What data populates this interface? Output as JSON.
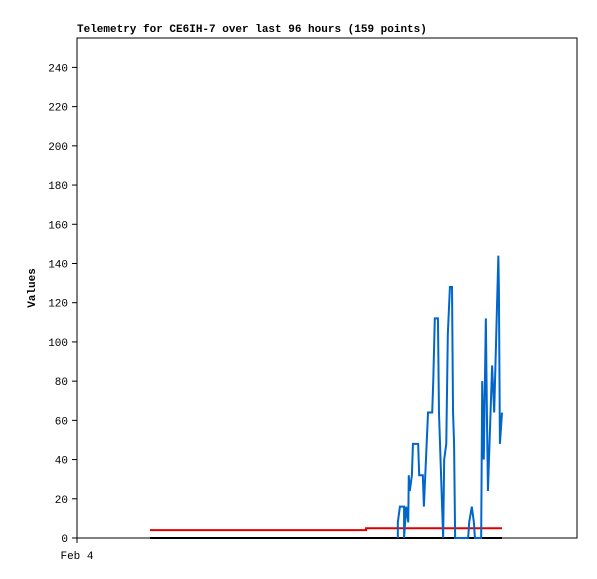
{
  "chart_data": {
    "type": "line",
    "title": "Telemetry for CE6IH-7 over last 96 hours (159 points)",
    "y_label": "Values",
    "xlim": [
      0,
      96
    ],
    "xticks": [
      {
        "value": 0,
        "label": "Feb 4"
      }
    ],
    "ylim": [
      0,
      255
    ],
    "yticks": [
      0,
      20,
      40,
      60,
      80,
      100,
      120,
      140,
      160,
      180,
      200,
      220,
      240
    ],
    "series": [
      {
        "color": "#000000",
        "x": [
          14,
          81.6
        ],
        "values": [
          0,
          0
        ]
      },
      {
        "color": "#e00000",
        "x": [
          14,
          55.5,
          55.5,
          81.6
        ],
        "values": [
          4,
          4,
          5,
          5
        ]
      },
      {
        "color": "#0066cc",
        "x": [
          61.6,
          61.6,
          62.0,
          62.8,
          62.8,
          63.2,
          63.6,
          63.7,
          63.9,
          64.3,
          64.5,
          65.5,
          65.7,
          66.4,
          66.6,
          67.0,
          67.4,
          68.2,
          68.4,
          68.7,
          69.3,
          69.5,
          69.9,
          70.3,
          70.5,
          70.9,
          71.2,
          71.6,
          72.0,
          72.2,
          72.4,
          72.6,
          75.1,
          75.3,
          75.8,
          76.2,
          76.4,
          77.6,
          77.8,
          78.1,
          78.5,
          78.7,
          78.9,
          79.3,
          79.7,
          80.1,
          80.5,
          80.9,
          81.0,
          81.2,
          81.6
        ],
        "values": [
          0,
          8,
          16,
          16,
          0,
          16,
          8,
          32,
          24,
          32,
          48,
          48,
          32,
          32,
          16,
          40,
          64,
          64,
          80,
          112,
          112,
          64,
          32,
          0,
          40,
          48,
          104,
          128,
          128,
          64,
          48,
          0,
          0,
          8,
          16,
          8,
          0,
          0,
          80,
          40,
          112,
          64,
          24,
          56,
          88,
          64,
          104,
          144,
          128,
          48,
          64
        ]
      }
    ]
  }
}
